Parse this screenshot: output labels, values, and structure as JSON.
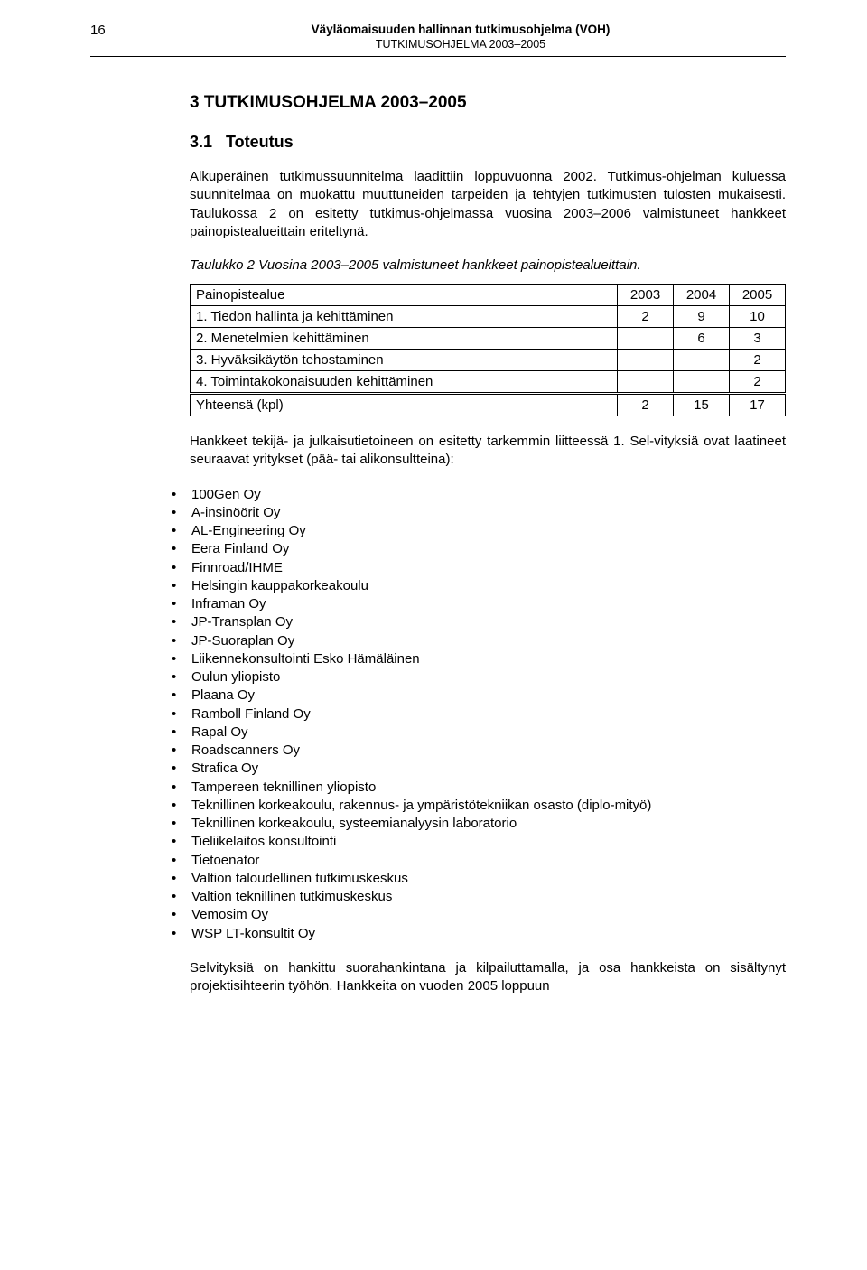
{
  "header": {
    "page_number": "16",
    "title_main": "Väyläomaisuuden hallinnan tutkimusohjelma (VOH)",
    "title_sub": "TUTKIMUSOHJELMA 2003–2005"
  },
  "section": {
    "heading": "3   TUTKIMUSOHJELMA 2003–2005",
    "subsection_num": "3.1",
    "subsection_label": "Toteutus",
    "para1": "Alkuperäinen tutkimussuunnitelma laadittiin loppuvuonna 2002. Tutkimus-ohjelman kuluessa suunnitelmaa on muokattu muuttuneiden tarpeiden ja tehtyjen tutkimusten tulosten mukaisesti. Taulukossa 2 on esitetty tutkimus-ohjelmassa vuosina 2003–2006 valmistuneet hankkeet painopistealueittain eriteltynä.",
    "caption": "Taulukko 2 Vuosina 2003–2005 valmistuneet hankkeet painopistealueittain.",
    "table": {
      "columns": [
        "Painopistealue",
        "2003",
        "2004",
        "2005"
      ],
      "rows": [
        [
          "1. Tiedon hallinta ja kehittäminen",
          "2",
          "9",
          "10"
        ],
        [
          "2. Menetelmien kehittäminen",
          "",
          "6",
          "3"
        ],
        [
          "3. Hyväksikäytön tehostaminen",
          "",
          "",
          "2"
        ],
        [
          "4. Toimintakokonaisuuden kehittäminen",
          "",
          "",
          "2"
        ]
      ],
      "total_row": [
        "Yhteensä (kpl)",
        "2",
        "15",
        "17"
      ]
    },
    "para2": "Hankkeet tekijä- ja julkaisutietoineen on esitetty tarkemmin liitteessä 1. Sel-vityksiä ovat laatineet seuraavat yritykset (pää- tai alikonsultteina):",
    "bullets": [
      "100Gen Oy",
      "A-insinöörit Oy",
      "AL-Engineering Oy",
      "Eera Finland Oy",
      "Finnroad/IHME",
      "Helsingin kauppakorkeakoulu",
      "Inframan Oy",
      "JP-Transplan Oy",
      "JP-Suoraplan Oy",
      "Liikennekonsultointi Esko Hämäläinen",
      "Oulun yliopisto",
      "Plaana Oy",
      "Ramboll Finland Oy",
      "Rapal Oy",
      "Roadscanners Oy",
      "Strafica Oy",
      "Tampereen teknillinen yliopisto",
      "Teknillinen korkeakoulu, rakennus- ja ympäristötekniikan osasto (diplo-mityö)",
      "Teknillinen korkeakoulu, systeemianalyysin laboratorio",
      "Tieliikelaitos konsultointi",
      "Tietoenator",
      "Valtion taloudellinen tutkimuskeskus",
      "Valtion teknillinen tutkimuskeskus",
      "Vemosim Oy",
      "WSP LT-konsultit Oy"
    ],
    "para3": "Selvityksiä on hankittu suorahankintana ja kilpailuttamalla, ja osa hankkeista on sisältynyt projektisihteerin työhön. Hankkeita on vuoden 2005 loppuun"
  }
}
